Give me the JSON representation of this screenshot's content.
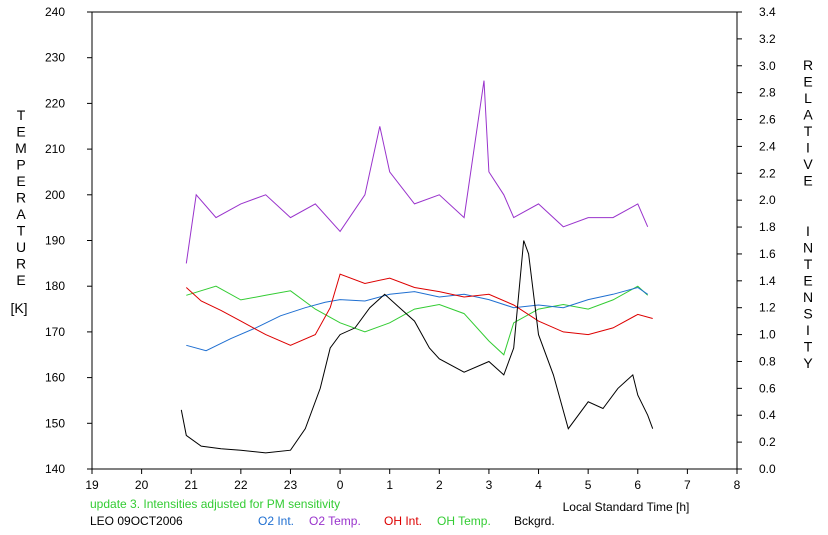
{
  "chart_data": {
    "type": "line",
    "title": "",
    "xlabel": "Local Standard Time [h]",
    "ylabel_left": "TEMPERATURE",
    "ylabel_left_unit": "[K]",
    "ylabel_right": "RELATIVE INTENSITY",
    "x_ticks": [
      19,
      20,
      21,
      22,
      23,
      0,
      1,
      2,
      3,
      4,
      5,
      6,
      7,
      8
    ],
    "x_range": [
      19,
      32
    ],
    "ylim_left": [
      140,
      240
    ],
    "y_ticks_left": [
      140,
      150,
      160,
      170,
      180,
      190,
      200,
      210,
      220,
      230,
      240
    ],
    "ylim_right": [
      0.0,
      3.4
    ],
    "y_ticks_right": [
      "0.0",
      "0.2",
      "0.4",
      "0.6",
      "0.8",
      "1.0",
      "1.2",
      "1.4",
      "1.6",
      "1.8",
      "2.0",
      "2.2",
      "2.4",
      "2.6",
      "2.8",
      "3.0",
      "3.2",
      "3.4"
    ],
    "grid": false,
    "series": [
      {
        "name": "O2 Temp.",
        "color": "#9933CC",
        "axis": "left",
        "x": [
          20.9,
          21.1,
          21.5,
          22.0,
          22.5,
          23.0,
          23.5,
          24.0,
          24.5,
          24.8,
          25.0,
          25.5,
          26.0,
          26.5,
          26.9,
          27.0,
          27.3,
          27.5,
          28.0,
          28.5,
          29.0,
          29.5,
          30.0,
          30.2
        ],
        "y": [
          185,
          200,
          195,
          198,
          200,
          195,
          198,
          192,
          200,
          215,
          205,
          198,
          200,
          195,
          225,
          205,
          200,
          195,
          198,
          193,
          195,
          195,
          198,
          193
        ]
      },
      {
        "name": "OH Temp.",
        "color": "#33CC33",
        "axis": "left",
        "x": [
          20.9,
          21.5,
          22.0,
          22.5,
          23.0,
          23.5,
          24.0,
          24.5,
          25.0,
          25.5,
          26.0,
          26.5,
          27.0,
          27.3,
          27.5,
          28.0,
          28.5,
          29.0,
          29.5,
          30.0,
          30.2
        ],
        "y": [
          178,
          180,
          177,
          178,
          179,
          175,
          172,
          170,
          172,
          175,
          176,
          174,
          168,
          165,
          172,
          175,
          176,
          175,
          177,
          180,
          178
        ]
      },
      {
        "name": "O2 Int.",
        "color": "#1F6FD1",
        "axis": "right",
        "x": [
          20.9,
          21.3,
          21.8,
          22.3,
          22.8,
          23.3,
          23.7,
          24.0,
          24.5,
          25.0,
          25.5,
          26.0,
          26.5,
          27.0,
          27.5,
          28.0,
          28.5,
          29.0,
          29.5,
          30.0,
          30.2
        ],
        "y": [
          0.92,
          0.88,
          0.97,
          1.05,
          1.14,
          1.2,
          1.24,
          1.26,
          1.25,
          1.3,
          1.32,
          1.28,
          1.3,
          1.26,
          1.2,
          1.22,
          1.2,
          1.26,
          1.3,
          1.35,
          1.3
        ]
      },
      {
        "name": "OH Int.",
        "color": "#DD0000",
        "axis": "right",
        "x": [
          20.9,
          21.2,
          21.6,
          22.0,
          22.5,
          23.0,
          23.5,
          23.8,
          24.0,
          24.5,
          25.0,
          25.5,
          26.0,
          26.5,
          27.0,
          27.5,
          28.0,
          28.5,
          29.0,
          29.5,
          30.0,
          30.3
        ],
        "y": [
          1.35,
          1.25,
          1.18,
          1.1,
          1.0,
          0.92,
          1.0,
          1.2,
          1.45,
          1.38,
          1.42,
          1.35,
          1.32,
          1.28,
          1.3,
          1.22,
          1.1,
          1.02,
          1.0,
          1.05,
          1.15,
          1.12
        ]
      },
      {
        "name": "Bckgrd.",
        "color": "#000000",
        "axis": "right",
        "x": [
          20.8,
          20.9,
          21.2,
          21.6,
          22.0,
          22.5,
          23.0,
          23.3,
          23.6,
          23.8,
          24.0,
          24.3,
          24.6,
          24.9,
          25.2,
          25.5,
          25.8,
          26.0,
          26.5,
          27.0,
          27.3,
          27.5,
          27.7,
          27.8,
          28.0,
          28.3,
          28.6,
          29.0,
          29.3,
          29.6,
          29.9,
          30.0,
          30.2,
          30.3
        ],
        "y": [
          0.44,
          0.25,
          0.17,
          0.15,
          0.14,
          0.12,
          0.14,
          0.3,
          0.6,
          0.9,
          1.0,
          1.05,
          1.2,
          1.3,
          1.2,
          1.1,
          0.9,
          0.82,
          0.72,
          0.8,
          0.7,
          0.9,
          1.7,
          1.6,
          1.0,
          0.7,
          0.3,
          0.5,
          0.45,
          0.6,
          0.7,
          0.55,
          0.4,
          0.3
        ]
      }
    ],
    "annotations": {
      "note_line1": "update 3. Intensities adjusted for PM sensitivity",
      "note_line2": "LEO 09OCT2006"
    }
  },
  "colors": {
    "o2_int": "#1F6FD1",
    "o2_temp": "#9933CC",
    "oh_int": "#DD0000",
    "oh_temp": "#33CC33",
    "bckgrd": "#000000",
    "note": "#33CC33"
  }
}
